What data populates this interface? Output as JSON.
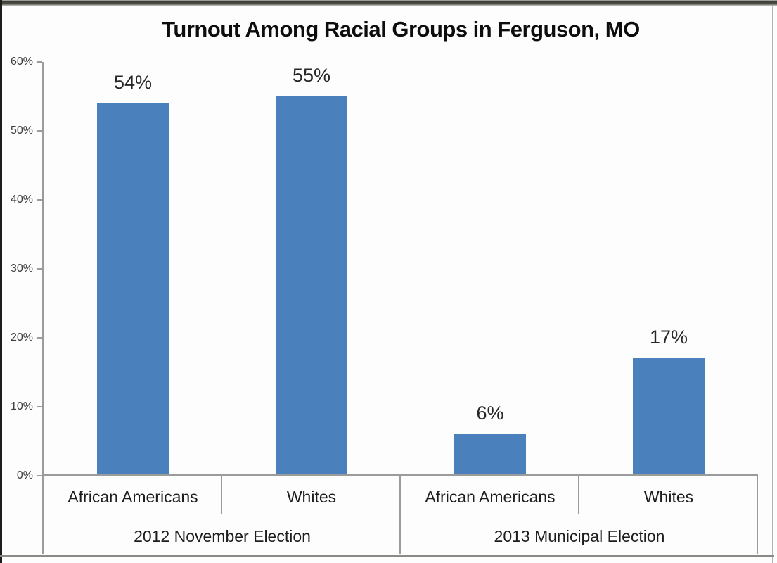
{
  "chart_data": {
    "type": "bar",
    "title": "Turnout Among Racial Groups in Ferguson, MO",
    "categories": [
      "African Americans",
      "Whites",
      "African Americans",
      "Whites"
    ],
    "values": [
      54,
      55,
      6,
      17
    ],
    "data_labels": [
      "54%",
      "55%",
      "6%",
      "17%"
    ],
    "group_labels": [
      "2012 November Election",
      "2013 Municipal Election"
    ],
    "categories_per_group": 2,
    "y_ticks": [
      "0%",
      "10%",
      "20%",
      "30%",
      "40%",
      "50%",
      "60%"
    ],
    "ylim": [
      0,
      60
    ],
    "xlabel": "",
    "ylabel": "",
    "grid": false,
    "legend": false,
    "bar_color": "#4A81BD"
  },
  "colors": {
    "axis": "#9B9B9B",
    "title_text": "#0D0D0D",
    "label_text": "#262626"
  }
}
